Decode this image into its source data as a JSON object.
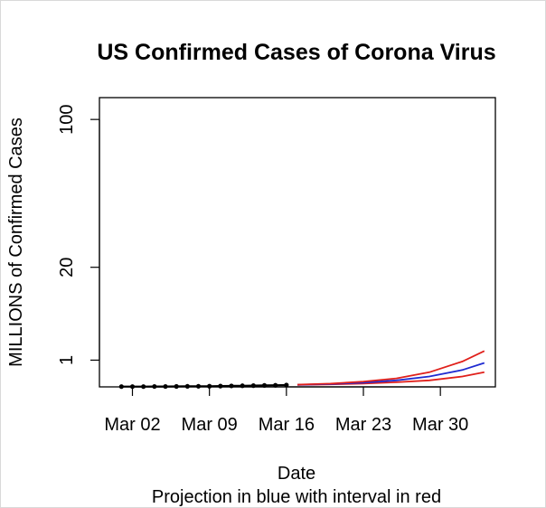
{
  "chart_data": {
    "type": "line",
    "title": "US Confirmed Cases of Corona Virus",
    "xlabel": "Date",
    "subtitle": "Projection in blue with interval in red",
    "ylabel": "MILLIONS of Confirmed Cases",
    "x_range": [
      "2020-02-28",
      "2020-04-04"
    ],
    "x_ticks": [
      {
        "date": "2020-03-02",
        "label": "Mar 02"
      },
      {
        "date": "2020-03-09",
        "label": "Mar 09"
      },
      {
        "date": "2020-03-16",
        "label": "Mar 16"
      },
      {
        "date": "2020-03-23",
        "label": "Mar 23"
      },
      {
        "date": "2020-03-30",
        "label": "Mar 30"
      }
    ],
    "y_ticks": [
      1,
      20,
      100
    ],
    "y_scale": "sqrt",
    "ylim": [
      0,
      117
    ],
    "series": [
      {
        "kind": "observed",
        "color": "#000000",
        "x": [
          "2020-03-01",
          "2020-03-02",
          "2020-03-03",
          "2020-03-04",
          "2020-03-05",
          "2020-03-06",
          "2020-03-07",
          "2020-03-08",
          "2020-03-09",
          "2020-03-10",
          "2020-03-11",
          "2020-03-12",
          "2020-03-13",
          "2020-03-14",
          "2020-03-15",
          "2020-03-16"
        ],
        "y": [
          0.0001,
          0.0001,
          0.0001,
          0.0002,
          0.0002,
          0.0003,
          0.0004,
          0.0005,
          0.0006,
          0.0009,
          0.0013,
          0.0017,
          0.0022,
          0.003,
          0.0036,
          0.0047
        ]
      },
      {
        "kind": "projection",
        "color": "#1f2bd1",
        "x": [
          "2020-03-17",
          "2020-03-20",
          "2020-03-23",
          "2020-03-26",
          "2020-03-29",
          "2020-04-01",
          "2020-04-03"
        ],
        "y": [
          0.006,
          0.012,
          0.025,
          0.06,
          0.15,
          0.4,
          0.8
        ]
      },
      {
        "kind": "interval-upper",
        "color": "#e0201b",
        "x": [
          "2020-03-17",
          "2020-03-20",
          "2020-03-23",
          "2020-03-26",
          "2020-03-29",
          "2020-04-01",
          "2020-04-03"
        ],
        "y": [
          0.007,
          0.015,
          0.04,
          0.1,
          0.3,
          0.9,
          1.8
        ]
      },
      {
        "kind": "interval-lower",
        "color": "#e0201b",
        "x": [
          "2020-03-17",
          "2020-03-20",
          "2020-03-23",
          "2020-03-26",
          "2020-03-29",
          "2020-04-01",
          "2020-04-03"
        ],
        "y": [
          0.005,
          0.009,
          0.015,
          0.03,
          0.06,
          0.15,
          0.3
        ]
      }
    ],
    "grid": false,
    "legend": "none"
  }
}
